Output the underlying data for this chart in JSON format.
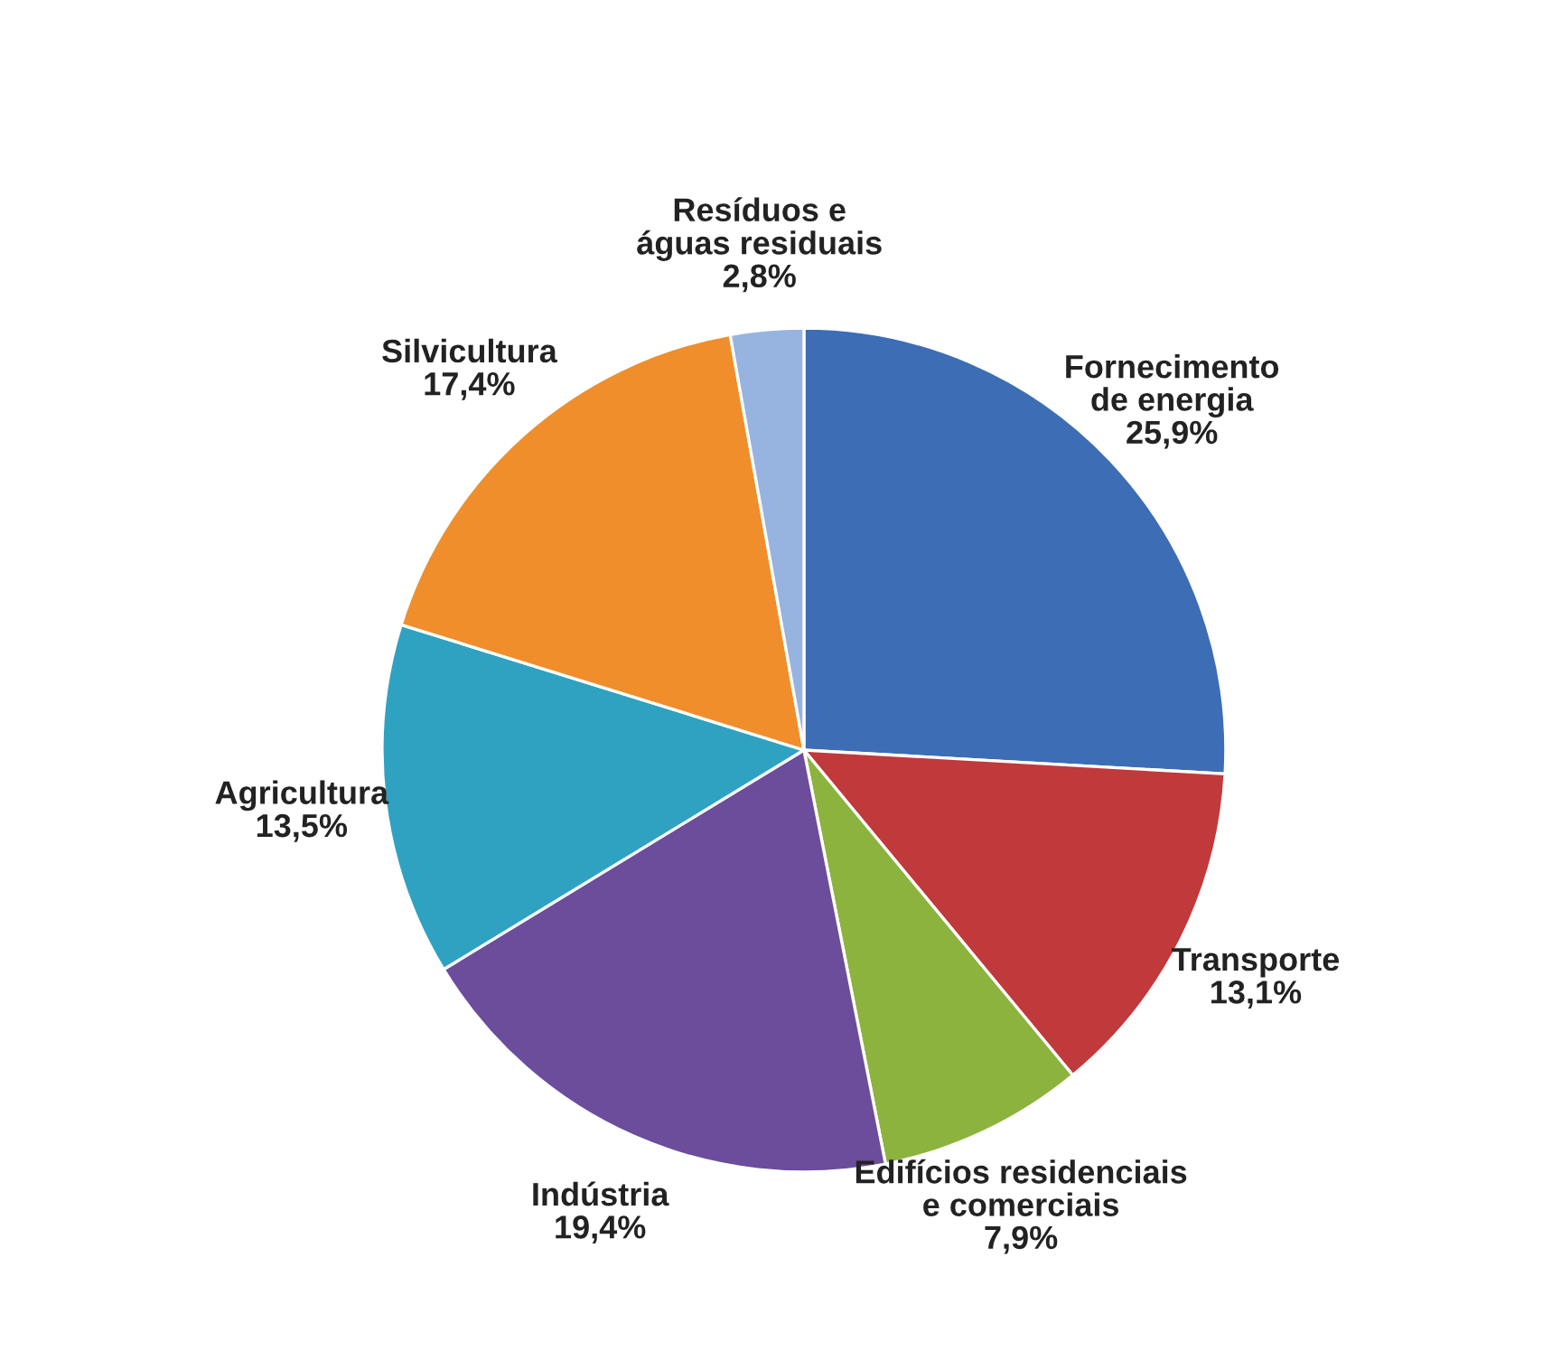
{
  "chart_data": {
    "type": "pie",
    "categories": [
      "Fornecimento\nde energia",
      "Transporte",
      "Edifícios residenciais\ne comerciais",
      "Indústria",
      "Agricultura",
      "Silvicultura",
      "Resíduos e\náguas residuais"
    ],
    "values": [
      25.9,
      13.1,
      7.9,
      19.4,
      13.5,
      17.4,
      2.8
    ],
    "value_labels": [
      "25,9%",
      "13,1%",
      "7,9%",
      "19,4%",
      "13,5%",
      "17,4%",
      "2,8%"
    ],
    "colors": [
      "#3d6db5",
      "#c0393b",
      "#8cb33e",
      "#6b4d9b",
      "#2fa2c2",
      "#ef8e2b",
      "#97b3e0"
    ]
  }
}
